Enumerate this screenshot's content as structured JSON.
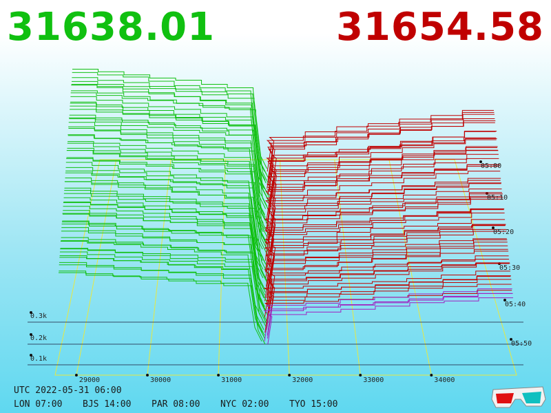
{
  "header": {
    "bid_price": "31638.01",
    "ask_price": "31654.58",
    "bid_color": "#10c010",
    "ask_color": "#c00000"
  },
  "footer": {
    "timestamp": "UTC 2022-05-31 06:00",
    "timezones": [
      {
        "label": "LON 07:00"
      },
      {
        "label": "BJS 14:00"
      },
      {
        "label": "PAR 08:00"
      },
      {
        "label": "NYC 02:00"
      },
      {
        "label": "TYO 15:00"
      }
    ],
    "glasses_icon": "3d-glasses-icon"
  },
  "chart_data": {
    "type": "area",
    "style": "3d-depth-waterfall",
    "x_ticks": [
      29000,
      30000,
      31000,
      32000,
      33000,
      34000
    ],
    "x_tick_labels": [
      "29000",
      "30000",
      "31000",
      "32000",
      "33000",
      "34000"
    ],
    "volume_ticks": [
      "0.1k",
      "0.2k",
      "0.3k"
    ],
    "time_ticks": [
      "05:00",
      "05:10",
      "05:20",
      "05:30",
      "05:40",
      "05:50"
    ],
    "series": [
      {
        "side": "bid",
        "color": "#10c010"
      },
      {
        "side": "ask",
        "color": "#c00000"
      }
    ],
    "mid_price": 31646,
    "grid": true
  }
}
